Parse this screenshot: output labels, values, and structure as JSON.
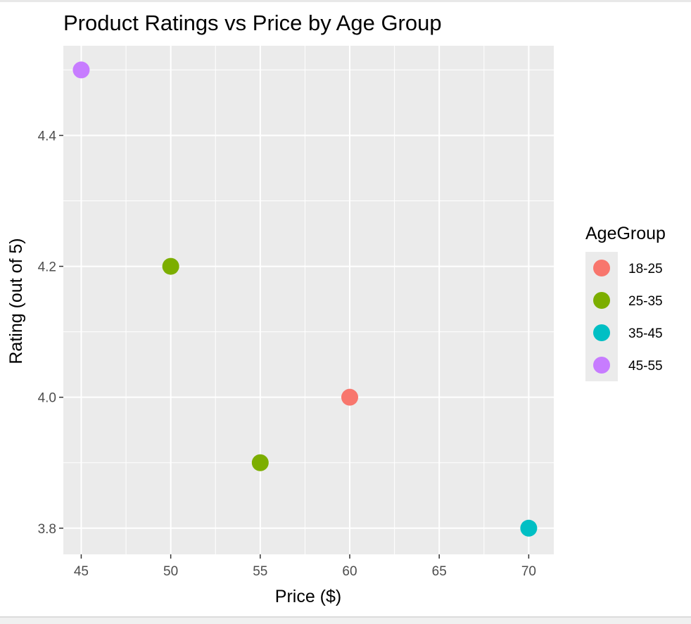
{
  "chart_data": {
    "type": "scatter",
    "title": "Product Ratings vs Price by Age Group",
    "xlabel": "Price ($)",
    "ylabel": "Rating (out of 5)",
    "xlim": [
      44,
      71.4
    ],
    "ylim": [
      3.76,
      4.537
    ],
    "x_ticks": [
      45,
      50,
      55,
      60,
      65,
      70
    ],
    "x_tick_labels": [
      "45",
      "50",
      "55",
      "60",
      "65",
      "70"
    ],
    "y_ticks": [
      3.8,
      4.0,
      4.2,
      4.4
    ],
    "y_tick_labels": [
      "3.8",
      "4.0",
      "4.2",
      "4.4"
    ],
    "grid": true,
    "legend": {
      "title": "AgeGroup",
      "placement": "right"
    },
    "series": [
      {
        "name": "18-25",
        "color": "#F8766D",
        "points": [
          {
            "x": 60,
            "y": 4.0
          }
        ]
      },
      {
        "name": "25-35",
        "color": "#7CAE00",
        "points": [
          {
            "x": 50,
            "y": 4.2
          },
          {
            "x": 55,
            "y": 3.9
          }
        ]
      },
      {
        "name": "35-45",
        "color": "#00BFC4",
        "points": [
          {
            "x": 70,
            "y": 3.8
          }
        ]
      },
      {
        "name": "45-55",
        "color": "#C77CFF",
        "points": [
          {
            "x": 45,
            "y": 4.5
          }
        ]
      }
    ],
    "panel_background": "#EBEBEB",
    "grid_color": "#FFFFFF"
  }
}
